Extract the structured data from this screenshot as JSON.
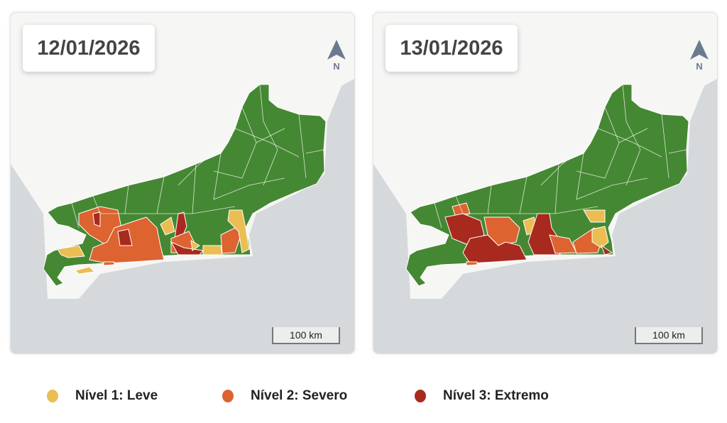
{
  "panels": [
    {
      "date": "12/01/2026",
      "north_label": "N",
      "scale_label": "100 km"
    },
    {
      "date": "13/01/2026",
      "north_label": "N",
      "scale_label": "100 km"
    }
  ],
  "legend": [
    {
      "label": "Nível 1: Leve",
      "color": "#ebbd52"
    },
    {
      "label": "Nível 2: Severo",
      "color": "#dd6330"
    },
    {
      "label": "Nível 3: Extremo",
      "color": "#a82a1f"
    }
  ],
  "colors": {
    "no_alert": "#458833",
    "ocean": "#d5d9dc",
    "land": "#f6f6f5"
  }
}
